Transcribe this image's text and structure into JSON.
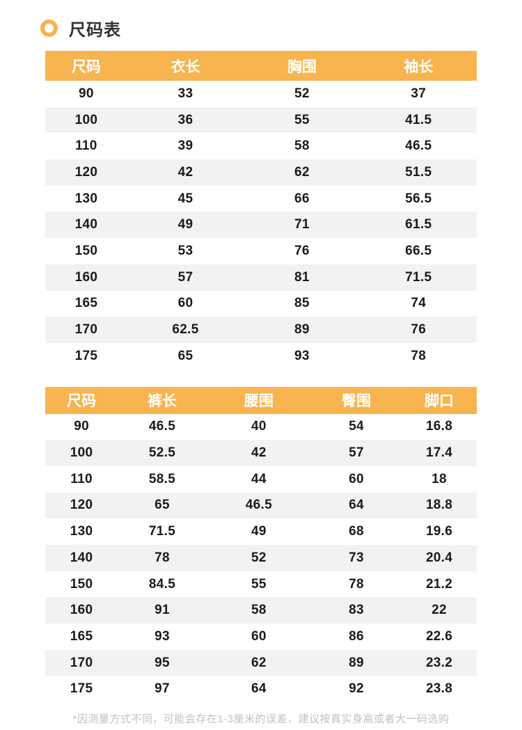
{
  "page": {
    "title": "尺码表",
    "footnote": "*因测量方式不同，可能会存在1-3厘米的误差，建议按真实身高或者大一码选购"
  },
  "colors": {
    "accent": "#F7B44F",
    "stripe": "#F2F2F2",
    "header_text": "#FFFFFF",
    "body_text": "#1A1A1A",
    "footnote_text": "#C2C2C2",
    "bg": "#FFFFFF"
  },
  "icons": {
    "bullet": "ring-icon"
  },
  "tables": [
    {
      "name": "top-size-table",
      "headers": [
        "尺码",
        "衣长",
        "胸围",
        "袖长"
      ],
      "rows": [
        [
          "90",
          "33",
          "52",
          "37"
        ],
        [
          "100",
          "36",
          "55",
          "41.5"
        ],
        [
          "110",
          "39",
          "58",
          "46.5"
        ],
        [
          "120",
          "42",
          "62",
          "51.5"
        ],
        [
          "130",
          "45",
          "66",
          "56.5"
        ],
        [
          "140",
          "49",
          "71",
          "61.5"
        ],
        [
          "150",
          "53",
          "76",
          "66.5"
        ],
        [
          "160",
          "57",
          "81",
          "71.5"
        ],
        [
          "165",
          "60",
          "85",
          "74"
        ],
        [
          "170",
          "62.5",
          "89",
          "76"
        ],
        [
          "175",
          "65",
          "93",
          "78"
        ]
      ]
    },
    {
      "name": "pants-size-table",
      "headers": [
        "尺码",
        "裤长",
        "腰围",
        "臀围",
        "脚口"
      ],
      "rows": [
        [
          "90",
          "46.5",
          "40",
          "54",
          "16.8"
        ],
        [
          "100",
          "52.5",
          "42",
          "57",
          "17.4"
        ],
        [
          "110",
          "58.5",
          "44",
          "60",
          "18"
        ],
        [
          "120",
          "65",
          "46.5",
          "64",
          "18.8"
        ],
        [
          "130",
          "71.5",
          "49",
          "68",
          "19.6"
        ],
        [
          "140",
          "78",
          "52",
          "73",
          "20.4"
        ],
        [
          "150",
          "84.5",
          "55",
          "78",
          "21.2"
        ],
        [
          "160",
          "91",
          "58",
          "83",
          "22"
        ],
        [
          "165",
          "93",
          "60",
          "86",
          "22.6"
        ],
        [
          "170",
          "95",
          "62",
          "89",
          "23.2"
        ],
        [
          "175",
          "97",
          "64",
          "92",
          "23.8"
        ]
      ]
    }
  ]
}
